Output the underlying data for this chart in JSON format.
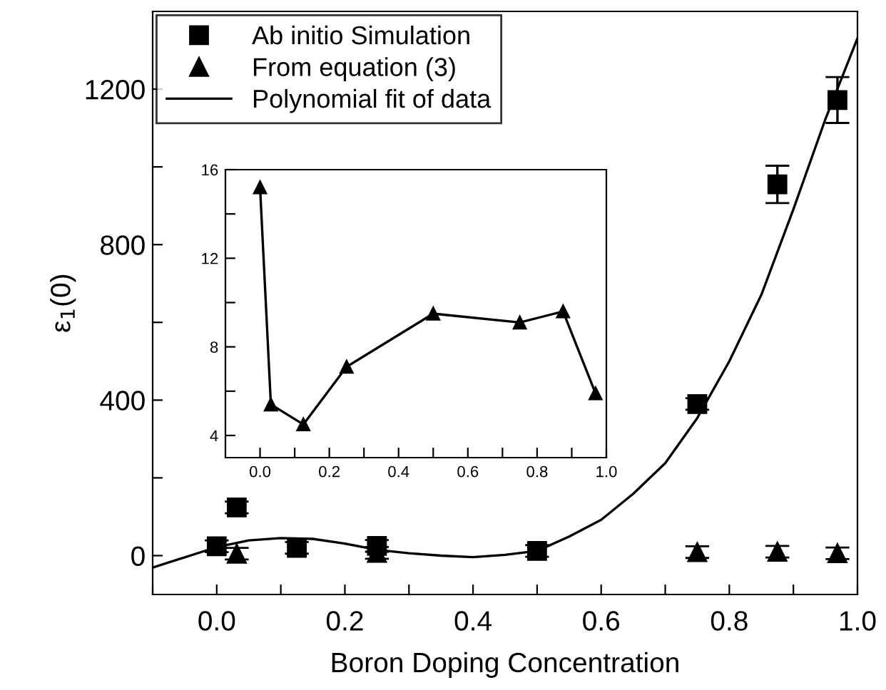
{
  "chart_data": [
    {
      "type": "scatter",
      "xlabel": "Boron Doping Concentration",
      "ylabel": "ε$_{1}$(0)",
      "xlim": [
        -0.1,
        1.0
      ],
      "xticks": [
        {
          "value": -0.1,
          "label": null
        },
        {
          "value": 0,
          "label": "0.0"
        },
        {
          "value": 0.1,
          "label": null
        },
        0.2,
        {
          "value": 0.3,
          "label": null
        },
        0.4,
        {
          "value": 0.5,
          "label": null
        },
        0.6,
        {
          "value": 0.7,
          "label": null
        },
        0.8,
        {
          "value": 0.9,
          "label": null
        },
        {
          "value": 1,
          "label": "1.0"
        }
      ],
      "ylim": [
        -100,
        1400
      ],
      "yticks": [
        0,
        {
          "value": 200,
          "label": null
        },
        400,
        {
          "value": 600,
          "label": null
        },
        800,
        {
          "value": 1000,
          "label": null
        },
        1200
      ],
      "grid": false,
      "legend": "top left",
      "series": [
        {
          "name": "Ab initio Simulation",
          "type": "scatter",
          "marker": "square",
          "color": "#000000",
          "x": [
            0.0,
            0.03125,
            0.125,
            0.25,
            0.5,
            0.75,
            0.875,
            0.96875
          ],
          "values": [
            24,
            124,
            20,
            25,
            12,
            390,
            955,
            1172
          ],
          "errors": [
            15,
            15,
            15,
            15,
            15,
            15,
            48,
            59
          ]
        },
        {
          "name": "From equation (3)",
          "type": "scatter",
          "marker": "triangle",
          "color": "#000000",
          "x": [
            0.03125,
            0.125,
            0.25,
            0.5,
            0.75,
            0.875,
            0.96875
          ],
          "values": [
            5,
            null,
            7,
            null,
            9,
            10,
            6
          ],
          "errors": [
            15,
            null,
            15,
            null,
            15,
            15,
            15
          ]
        },
        {
          "name": "Polynomial fit of data",
          "type": "line",
          "marker": "none",
          "line_style": "solid",
          "color": "#000000",
          "x": [
            -0.1,
            0.0,
            0.05,
            0.1,
            0.15,
            0.2,
            0.25,
            0.3,
            0.35,
            0.4,
            0.45,
            0.5,
            0.55,
            0.6,
            0.65,
            0.7,
            0.75,
            0.8,
            0.85,
            0.9,
            0.95,
            1.0
          ],
          "values": [
            -31,
            22,
            39,
            45,
            43,
            31,
            15,
            6,
            0,
            -4,
            2,
            12,
            49,
            92,
            159,
            238,
            354,
            500,
            671,
            891,
            1123,
            1331
          ]
        }
      ]
    },
    {
      "type": "line",
      "marker": "triangle",
      "line_style": "solid",
      "xlim": [
        -0.1,
        1.0
      ],
      "xticks": [
        {
          "value": 0,
          "label": "0.0"
        },
        {
          "value": 0.1,
          "label": null
        },
        0.2,
        {
          "value": 0.3,
          "label": null
        },
        0.4,
        {
          "value": 0.5,
          "label": null
        },
        0.6,
        {
          "value": 0.7,
          "label": null
        },
        0.8,
        {
          "value": 0.9,
          "label": null
        },
        {
          "value": 1,
          "label": "1.0"
        }
      ],
      "ylim": [
        3,
        16
      ],
      "yticks": [
        4,
        {
          "value": 6,
          "label": null
        },
        8,
        {
          "value": 10,
          "label": null
        },
        12,
        {
          "value": 14,
          "label": null
        },
        16
      ],
      "grid": false,
      "legend": false,
      "series": [
        {
          "color": "#000000",
          "x": [
            0.0,
            0.03125,
            0.125,
            0.25,
            0.5,
            0.75,
            0.875,
            0.96875
          ],
          "values": [
            15.2,
            5.4,
            4.5,
            7.1,
            9.5,
            9.1,
            9.6,
            5.9
          ]
        }
      ]
    }
  ]
}
